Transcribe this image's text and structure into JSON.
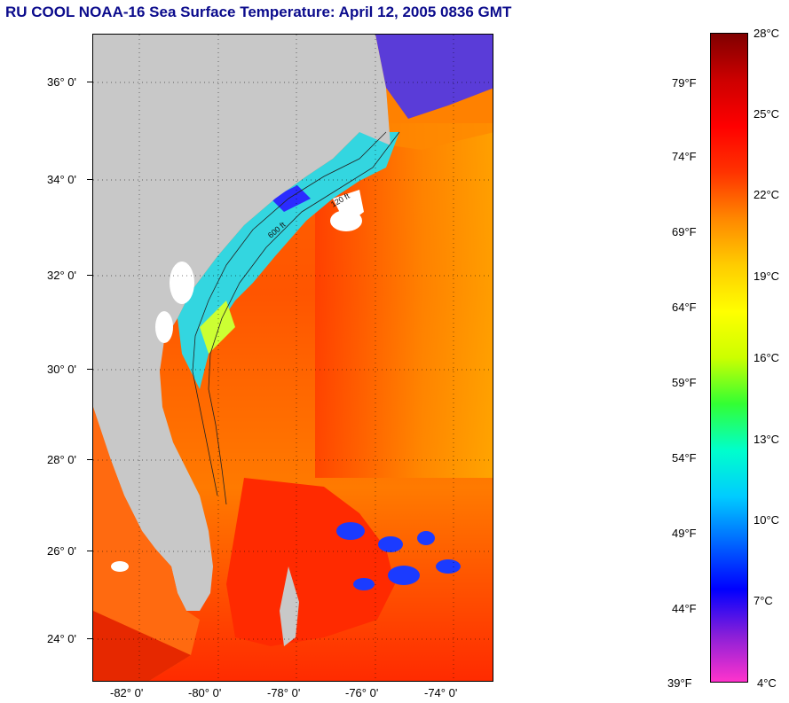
{
  "title": "RU COOL  NOAA-16  Sea Surface Temperature:  April 12, 2005 0836 GMT",
  "map": {
    "lat_labels": [
      "36° 0'",
      "34° 0'",
      "32° 0'",
      "30° 0'",
      "28° 0'",
      "26° 0'",
      "24° 0'"
    ],
    "lon_labels": [
      "-82° 0'",
      "-80° 0'",
      "-78° 0'",
      "-76° 0'",
      "-74° 0'"
    ],
    "isobath_labels": [
      "120 ft",
      "600 ft"
    ],
    "colors": {
      "land": "#c8c8c8",
      "cloud": "#ffffff",
      "warm": "#ff3a00",
      "cool": "#00c8ff"
    }
  },
  "colorbar": {
    "celsius_labels": [
      "28°C",
      "25°C",
      "22°C",
      "19°C",
      "16°C",
      "13°C",
      "10°C",
      "7°C",
      "4°C"
    ],
    "fahrenheit_labels": [
      "79°F",
      "74°F",
      "69°F",
      "64°F",
      "59°F",
      "54°F",
      "49°F",
      "44°F",
      "39°F"
    ],
    "range_celsius": [
      4,
      28
    ],
    "colors": [
      "#ff33cc",
      "#8a1fd8",
      "#0000ff",
      "#0066ff",
      "#00ccff",
      "#00ffcc",
      "#33ff33",
      "#ccff00",
      "#ffff00",
      "#ffcc00",
      "#ff8800",
      "#ff3300",
      "#ff0000",
      "#cc0000",
      "#800000"
    ]
  }
}
